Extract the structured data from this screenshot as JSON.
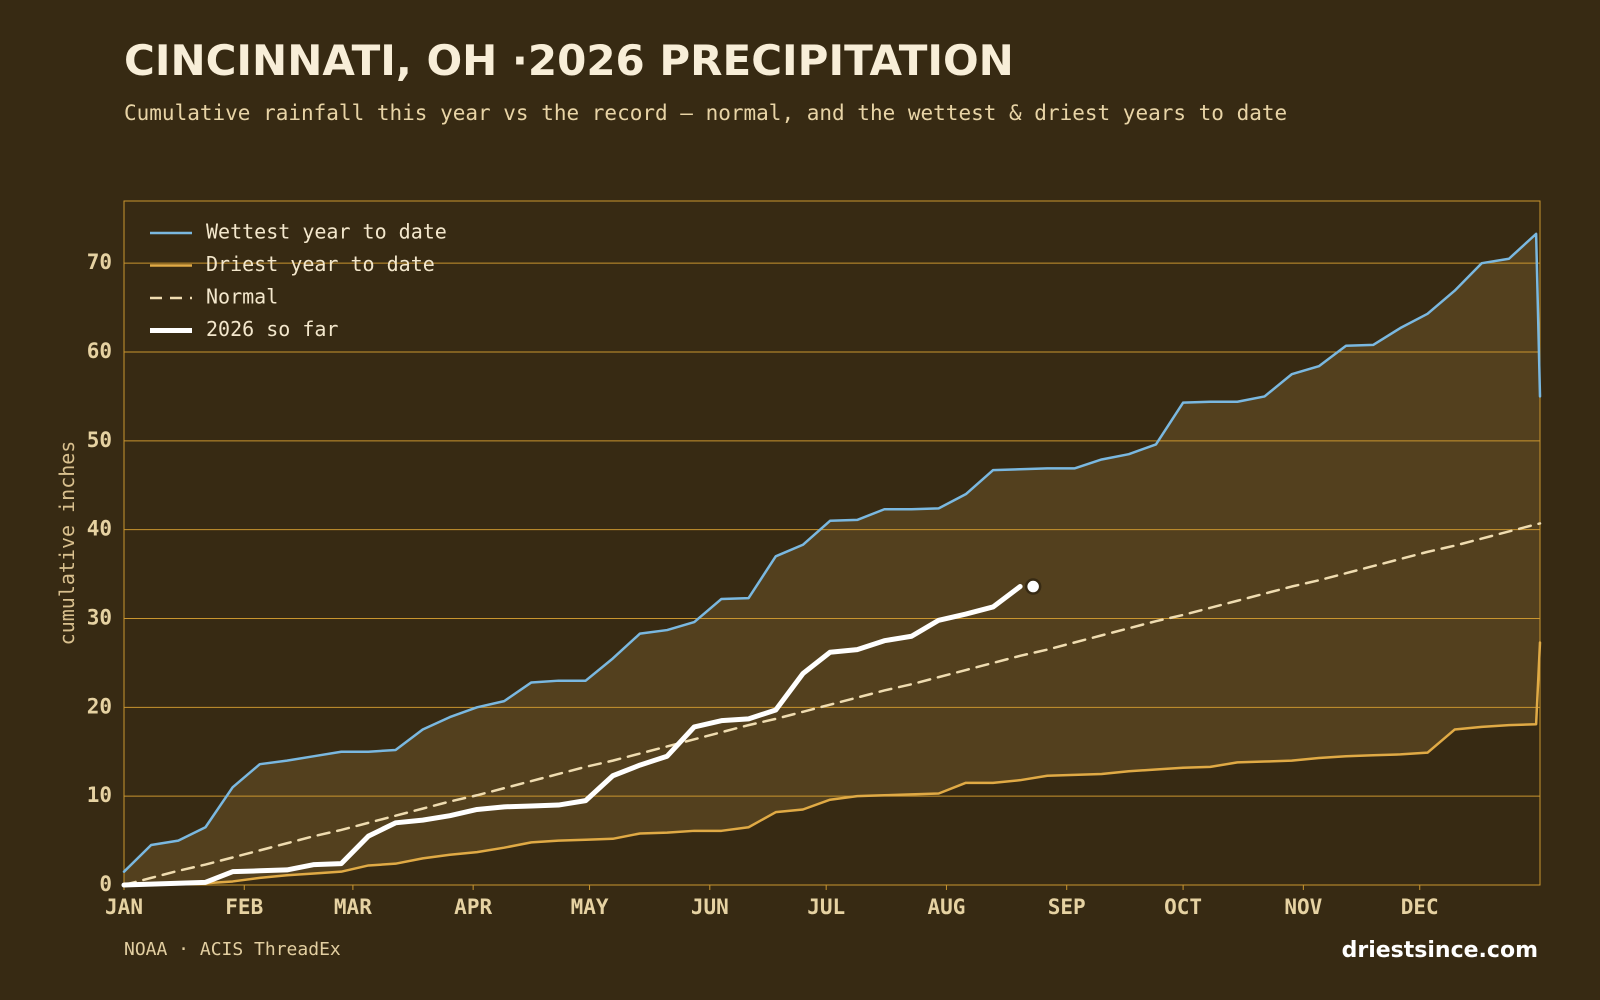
{
  "chart_data": {
    "type": "line",
    "title": "CINCINNATI, OH ·2026 PRECIPITATION",
    "subtitle": "Cumulative rainfall this year vs the record — normal, and the wettest & driest years to date",
    "y_label": "cumulative inches",
    "source": "NOAA · ACIS ThreadEx",
    "brand": "driestsince.com",
    "grid": true,
    "band_color": "#53401e",
    "x": [
      0,
      7,
      14,
      21,
      28,
      35,
      42,
      49,
      56,
      63,
      70,
      77,
      84,
      91,
      98,
      105,
      112,
      119,
      126,
      133,
      140,
      147,
      154,
      161,
      168,
      175,
      182,
      189,
      196,
      203,
      210,
      217,
      224,
      231,
      238,
      245,
      252,
      259,
      266,
      273,
      280,
      287,
      294,
      301,
      308,
      315,
      322,
      329,
      336,
      343,
      350,
      357,
      364,
      365
    ],
    "xlim": [
      0,
      365
    ],
    "xticks": [
      {
        "value": 0,
        "label": "JAN"
      },
      {
        "value": 31,
        "label": "FEB"
      },
      {
        "value": 59,
        "label": "MAR"
      },
      {
        "value": 90,
        "label": "APR"
      },
      {
        "value": 120,
        "label": "MAY"
      },
      {
        "value": 151,
        "label": "JUN"
      },
      {
        "value": 181,
        "label": "JUL"
      },
      {
        "value": 212,
        "label": "AUG"
      },
      {
        "value": 243,
        "label": "SEP"
      },
      {
        "value": 273,
        "label": "OCT"
      },
      {
        "value": 304,
        "label": "NOV"
      },
      {
        "value": 334,
        "label": "DEC"
      }
    ],
    "ylim": [
      0,
      77
    ],
    "yticks": [
      0,
      10,
      20,
      30,
      40,
      50,
      60,
      70
    ],
    "series": [
      {
        "name": "Wettest year to date",
        "color": "#7ab8e0",
        "width": 2.5,
        "dash": false,
        "values": [
          1.5,
          4.5,
          5,
          6.5,
          11,
          13.6,
          14,
          14.5,
          15,
          15,
          15.2,
          17.5,
          18.9,
          20,
          20.7,
          22.8,
          23,
          23,
          25.5,
          28.3,
          28.7,
          29.6,
          32.2,
          32.3,
          37,
          38.3,
          41,
          41.1,
          42.3,
          42.3,
          42.4,
          44,
          46.7,
          46.8,
          46.9,
          46.9,
          47.9,
          48.5,
          49.6,
          54.3,
          54.4,
          54.4,
          55,
          57.5,
          58.4,
          60.7,
          60.8,
          62.7,
          64.3,
          66.9,
          70,
          70.5,
          73.3,
          55
        ]
      },
      {
        "name": "Driest year to date",
        "color": "#e0aa45",
        "width": 2.5,
        "dash": false,
        "values": [
          0,
          0,
          0.1,
          0.2,
          0.4,
          0.8,
          1.1,
          1.3,
          1.5,
          2.2,
          2.4,
          3,
          3.4,
          3.7,
          4.2,
          4.8,
          5,
          5.1,
          5.2,
          5.8,
          5.9,
          6.1,
          6.1,
          6.5,
          8.2,
          8.5,
          9.6,
          10,
          10.1,
          10.2,
          10.3,
          11.5,
          11.5,
          11.8,
          12.3,
          12.4,
          12.5,
          12.8,
          13,
          13.2,
          13.3,
          13.8,
          13.9,
          14,
          14.3,
          14.5,
          14.6,
          14.7,
          14.9,
          17.5,
          17.8,
          18,
          18.1,
          27.3
        ]
      },
      {
        "name": "Normal",
        "color": "#efdcb0",
        "width": 2.5,
        "dash": true,
        "values": [
          0,
          0.8,
          1.6,
          2.3,
          3.1,
          3.9,
          4.7,
          5.5,
          6.2,
          7,
          7.8,
          8.6,
          9.4,
          10.1,
          10.9,
          11.7,
          12.5,
          13.3,
          14,
          14.8,
          15.6,
          16.4,
          17.2,
          18,
          18.7,
          19.5,
          20.3,
          21.1,
          21.9,
          22.6,
          23.4,
          24.2,
          25,
          25.8,
          26.5,
          27.3,
          28.1,
          28.9,
          29.7,
          30.4,
          31.2,
          32,
          32.8,
          33.6,
          34.3,
          35.1,
          35.9,
          36.7,
          37.5,
          38.2,
          39,
          39.8,
          40.6,
          40.7
        ]
      },
      {
        "name": "2026 so far",
        "color": "#ffffff",
        "width": 5,
        "dash": false,
        "end_marker": true,
        "values": [
          0,
          0.1,
          0.2,
          0.3,
          1.5,
          1.6,
          1.7,
          2.3,
          2.4,
          5.5,
          7,
          7.3,
          7.8,
          8.5,
          8.8,
          8.9,
          9,
          9.5,
          12.3,
          13.5,
          14.5,
          17.8,
          18.5,
          18.7,
          19.7,
          23.8,
          26.2,
          26.5,
          27.5,
          28,
          29.8,
          30.5,
          31.3,
          33.6,
          null,
          null,
          null,
          null,
          null,
          null,
          null,
          null,
          null,
          null,
          null,
          null,
          null,
          null,
          null,
          null,
          null,
          null,
          null,
          null
        ]
      }
    ]
  }
}
